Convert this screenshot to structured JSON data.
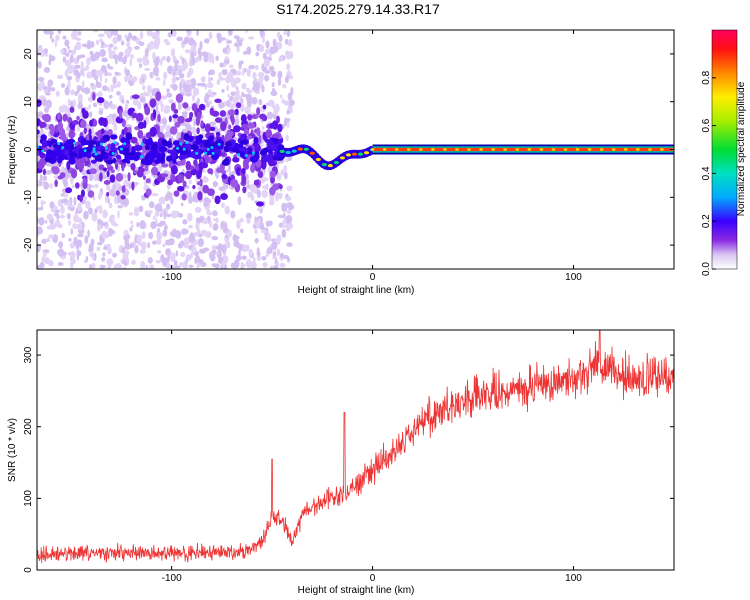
{
  "title": "S174.2025.279.14.33.R17",
  "chart_data": [
    {
      "type": "heatmap",
      "panel": "spectrogram",
      "xlabel": "Height of straight line (km)",
      "ylabel": "Frequency (Hz)",
      "xlim": [
        -167,
        150
      ],
      "ylim": [
        -25,
        25
      ],
      "xticks": [
        -100,
        0,
        100
      ],
      "yticks": [
        -20,
        -10,
        0,
        10,
        20
      ],
      "colorbar": {
        "label": "Normalized spectral amplitude",
        "range": [
          0,
          1
        ],
        "ticks": [
          0.0,
          0.2,
          0.4,
          0.6,
          0.8
        ]
      },
      "features": [
        {
          "description": "broadband scattered noise",
          "x_range": [
            -167,
            -45
          ],
          "freq_spread_hz": 25
        },
        {
          "description": "narrow tone, dipping to about -3 Hz near -20 km",
          "x_range": [
            -45,
            0
          ]
        },
        {
          "description": "strong narrow tone at 0 Hz",
          "x_range": [
            0,
            150
          ],
          "amplitude": 1.0
        }
      ]
    },
    {
      "type": "line",
      "panel": "snr",
      "xlabel": "Height of straight line (km)",
      "ylabel": "SNR (10 * v/v)",
      "xlim": [
        -167,
        150
      ],
      "ylim": [
        0,
        335
      ],
      "xticks": [
        -100,
        0,
        100
      ],
      "yticks": [
        0,
        100,
        200,
        300
      ],
      "color": "#ee3333",
      "series": [
        {
          "name": "SNR trend",
          "x": [
            -167,
            -140,
            -100,
            -70,
            -60,
            -54,
            -50,
            -45,
            -40,
            -35,
            -30,
            -20,
            -10,
            0,
            10,
            20,
            30,
            40,
            50,
            60,
            80,
            100,
            110,
            120,
            130,
            150
          ],
          "y": [
            22,
            23,
            23,
            25,
            30,
            45,
            75,
            70,
            40,
            80,
            90,
            100,
            115,
            140,
            165,
            195,
            220,
            230,
            240,
            245,
            255,
            270,
            285,
            275,
            265,
            270
          ]
        }
      ],
      "noise_amplitude": 10,
      "spikes": [
        {
          "x": -50,
          "y": 155
        },
        {
          "x": -14,
          "y": 220
        },
        {
          "x": 113,
          "y": 335
        }
      ]
    }
  ]
}
